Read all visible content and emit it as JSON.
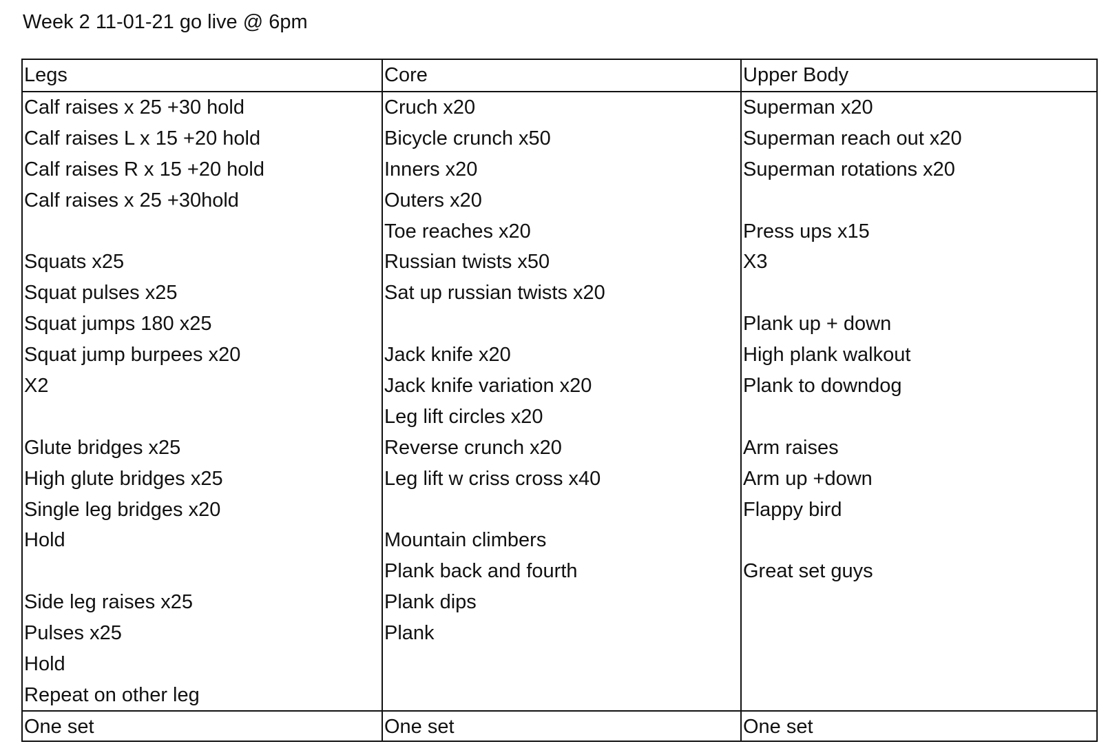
{
  "title": "Week 2 11-01-21 go live @ 6pm",
  "columns": [
    {
      "header": "Legs",
      "lines": [
        "Calf raises x 25 +30 hold",
        "Calf raises L x 15 +20 hold",
        "Calf raises R x 15 +20 hold",
        "Calf raises x 25 +30hold",
        "",
        "Squats x25",
        "Squat pulses x25",
        "Squat jumps 180 x25",
        "Squat jump burpees x20",
        "X2",
        "",
        "Glute bridges x25",
        "High glute bridges x25",
        "Single leg bridges x20",
        "Hold",
        "",
        "Side leg raises x25",
        "Pulses x25",
        "Hold",
        "Repeat on other leg"
      ],
      "footer": "One set"
    },
    {
      "header": "Core",
      "lines": [
        "Cruch x20",
        "Bicycle crunch x50",
        "Inners x20",
        "Outers x20",
        "Toe reaches x20",
        "Russian twists x50",
        "Sat up russian twists x20",
        "",
        "Jack knife x20",
        "Jack knife variation x20",
        "Leg lift circles x20",
        "Reverse crunch x20",
        "Leg lift w criss cross x40",
        "",
        "Mountain climbers",
        "Plank back and fourth",
        "Plank dips",
        "Plank"
      ],
      "footer": "One set"
    },
    {
      "header": "Upper Body",
      "lines": [
        "Superman x20",
        "Superman reach out x20",
        "Superman rotations x20",
        "",
        "Press ups x15",
        "X3",
        "",
        "Plank up + down",
        "High plank walkout",
        "Plank to downdog",
        "",
        "Arm raises",
        "Arm up +down",
        "Flappy bird",
        "",
        "Great set guys"
      ],
      "footer": "One set"
    }
  ]
}
